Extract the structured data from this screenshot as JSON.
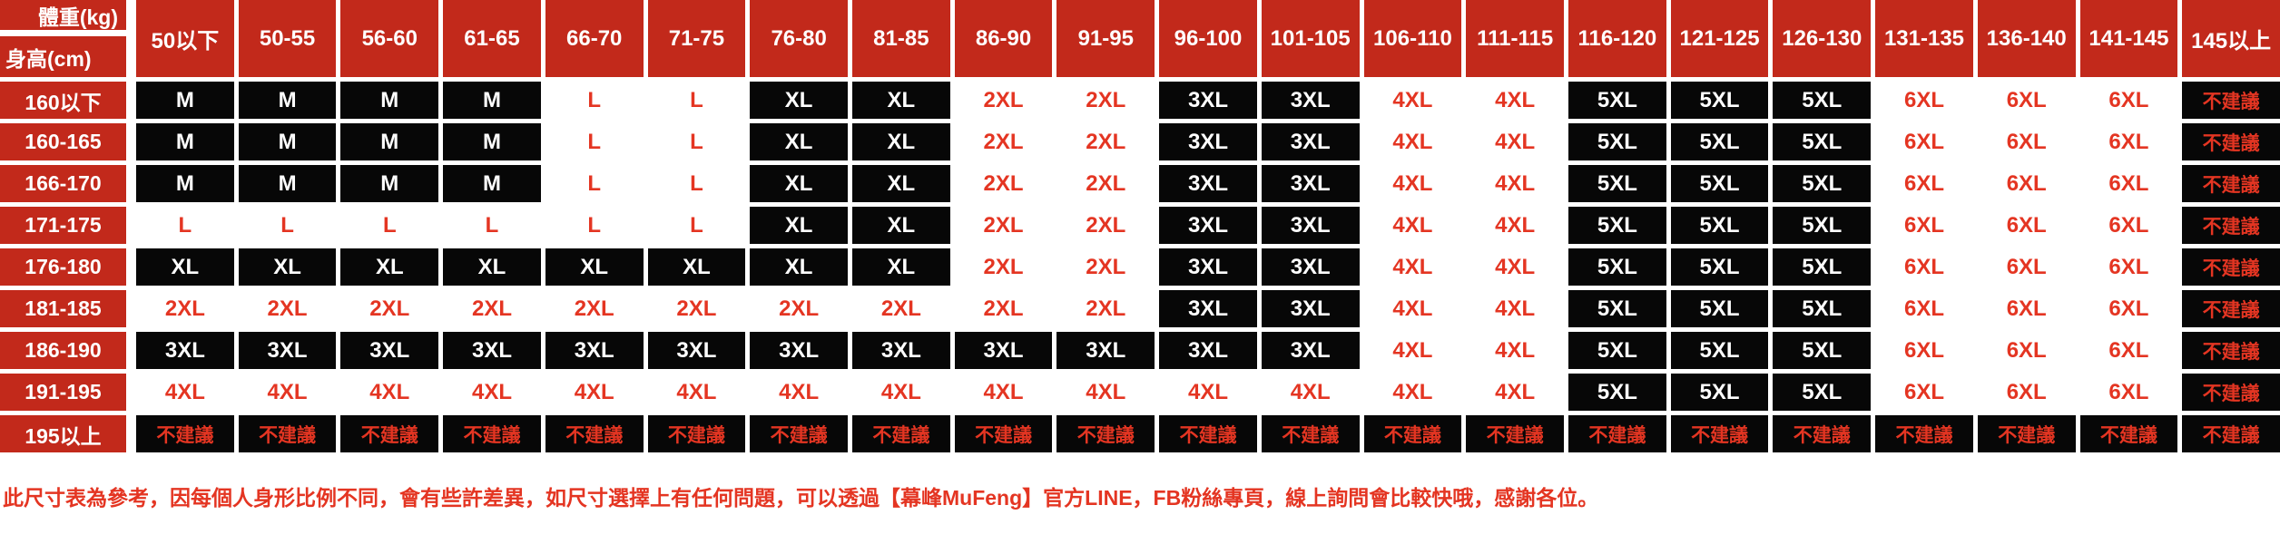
{
  "colors": {
    "red_bg": "#c2291b",
    "red_text": "#e43522",
    "cell_black": "#070707",
    "page_bg": "#ffffff"
  },
  "size_chart": {
    "corner": {
      "weight_label": "體重(kg)",
      "height_label": "身高(cm)"
    },
    "weight_columns": [
      "50以下",
      "50-55",
      "56-60",
      "61-65",
      "66-70",
      "71-75",
      "76-80",
      "81-85",
      "86-90",
      "91-95",
      "96-100",
      "101-105",
      "106-110",
      "111-115",
      "116-120",
      "121-125",
      "126-130",
      "131-135",
      "136-140",
      "141-145",
      "145以上"
    ],
    "not_recommended": "不建議",
    "rows": [
      {
        "height": "160以下",
        "sizes": [
          "M",
          "M",
          "M",
          "M",
          "L",
          "L",
          "XL",
          "XL",
          "2XL",
          "2XL",
          "3XL",
          "3XL",
          "4XL",
          "4XL",
          "5XL",
          "5XL",
          "5XL",
          "6XL",
          "6XL",
          "6XL",
          "不建議"
        ]
      },
      {
        "height": "160-165",
        "sizes": [
          "M",
          "M",
          "M",
          "M",
          "L",
          "L",
          "XL",
          "XL",
          "2XL",
          "2XL",
          "3XL",
          "3XL",
          "4XL",
          "4XL",
          "5XL",
          "5XL",
          "5XL",
          "6XL",
          "6XL",
          "6XL",
          "不建議"
        ]
      },
      {
        "height": "166-170",
        "sizes": [
          "M",
          "M",
          "M",
          "M",
          "L",
          "L",
          "XL",
          "XL",
          "2XL",
          "2XL",
          "3XL",
          "3XL",
          "4XL",
          "4XL",
          "5XL",
          "5XL",
          "5XL",
          "6XL",
          "6XL",
          "6XL",
          "不建議"
        ]
      },
      {
        "height": "171-175",
        "sizes": [
          "L",
          "L",
          "L",
          "L",
          "L",
          "L",
          "XL",
          "XL",
          "2XL",
          "2XL",
          "3XL",
          "3XL",
          "4XL",
          "4XL",
          "5XL",
          "5XL",
          "5XL",
          "6XL",
          "6XL",
          "6XL",
          "不建議"
        ]
      },
      {
        "height": "176-180",
        "sizes": [
          "XL",
          "XL",
          "XL",
          "XL",
          "XL",
          "XL",
          "XL",
          "XL",
          "2XL",
          "2XL",
          "3XL",
          "3XL",
          "4XL",
          "4XL",
          "5XL",
          "5XL",
          "5XL",
          "6XL",
          "6XL",
          "6XL",
          "不建議"
        ]
      },
      {
        "height": "181-185",
        "sizes": [
          "2XL",
          "2XL",
          "2XL",
          "2XL",
          "2XL",
          "2XL",
          "2XL",
          "2XL",
          "2XL",
          "2XL",
          "3XL",
          "3XL",
          "4XL",
          "4XL",
          "5XL",
          "5XL",
          "5XL",
          "6XL",
          "6XL",
          "6XL",
          "不建議"
        ]
      },
      {
        "height": "186-190",
        "sizes": [
          "3XL",
          "3XL",
          "3XL",
          "3XL",
          "3XL",
          "3XL",
          "3XL",
          "3XL",
          "3XL",
          "3XL",
          "3XL",
          "3XL",
          "4XL",
          "4XL",
          "5XL",
          "5XL",
          "5XL",
          "6XL",
          "6XL",
          "6XL",
          "不建議"
        ]
      },
      {
        "height": "191-195",
        "sizes": [
          "4XL",
          "4XL",
          "4XL",
          "4XL",
          "4XL",
          "4XL",
          "4XL",
          "4XL",
          "4XL",
          "4XL",
          "4XL",
          "4XL",
          "4XL",
          "4XL",
          "5XL",
          "5XL",
          "5XL",
          "6XL",
          "6XL",
          "6XL",
          "不建議"
        ]
      },
      {
        "height": "195以上",
        "sizes": [
          "不建議",
          "不建議",
          "不建議",
          "不建議",
          "不建議",
          "不建議",
          "不建議",
          "不建議",
          "不建議",
          "不建議",
          "不建議",
          "不建議",
          "不建議",
          "不建議",
          "不建議",
          "不建議",
          "不建議",
          "不建議",
          "不建議",
          "不建議",
          "不建議"
        ]
      }
    ]
  },
  "note": "此尺寸表為參考，因每個人身形比例不同，會有些許差異，如尺寸選擇上有任何問題，可以透過【幕峰MuFeng】官方LINE，FB粉絲專頁，線上詢問會比較快哦，感謝各位。"
}
